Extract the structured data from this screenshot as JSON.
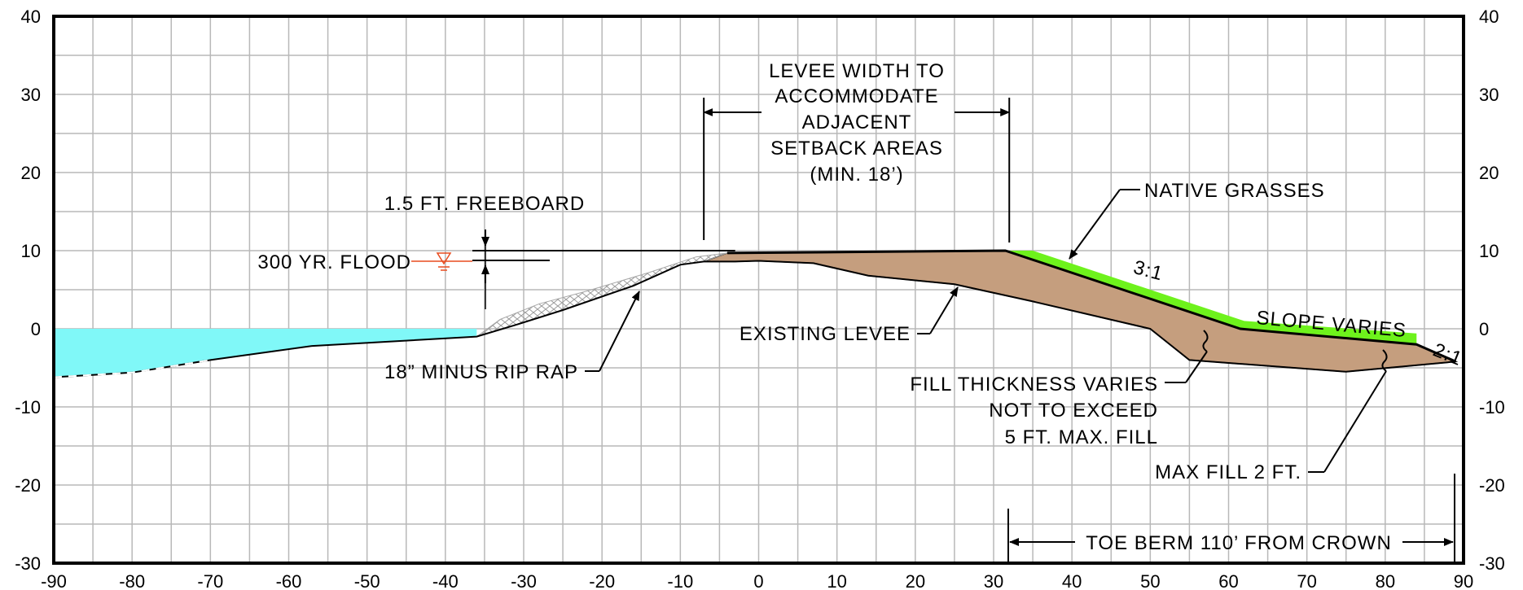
{
  "chart_data": {
    "type": "cross-section",
    "x_range": [
      -90,
      90
    ],
    "y_range": [
      -30,
      40
    ],
    "grid": true,
    "x_ticks": [
      -90,
      -80,
      -70,
      -60,
      -50,
      -40,
      -30,
      -20,
      -10,
      0,
      10,
      20,
      30,
      40,
      50,
      60,
      70,
      80,
      90
    ],
    "y_ticks": [
      40,
      30,
      20,
      10,
      0,
      -10,
      -20,
      -30
    ],
    "water_surface_elev": 0,
    "flood_elev": 8.5,
    "crown_elev": 10,
    "existing_ground": [
      [
        -90,
        -6.2
      ],
      [
        -80,
        -5.6
      ],
      [
        -70,
        -4
      ],
      [
        -57,
        -2.2
      ],
      [
        -36,
        -1
      ],
      [
        -31,
        0.5
      ],
      [
        -25,
        2.4
      ],
      [
        -16,
        5.5
      ],
      [
        -10,
        8.2
      ],
      [
        -7,
        8.6
      ],
      [
        -3,
        8.6
      ],
      [
        0,
        8.7
      ],
      [
        7,
        8.4
      ],
      [
        14,
        6.8
      ],
      [
        25,
        5.7
      ],
      [
        35,
        3.5
      ],
      [
        50,
        0
      ],
      [
        55,
        -4
      ],
      [
        75,
        -5.5
      ],
      [
        89,
        -4.2
      ]
    ],
    "new_levee_top": [
      [
        -4,
        9.7
      ],
      [
        31.5,
        10
      ],
      [
        61.5,
        0
      ],
      [
        84,
        -2
      ],
      [
        89,
        -4.2
      ]
    ],
    "colors": {
      "water": "#80f8f8",
      "fill": "#c59e7e",
      "grass": "#6ef21c",
      "flood": "#e84b1e"
    }
  },
  "annotations": {
    "levee_width_1": "LEVEE WIDTH TO",
    "levee_width_2": "ACCOMMODATE",
    "levee_width_3": "ADJACENT",
    "levee_width_4": "SETBACK AREAS",
    "levee_width_5": "(MIN. 18’)",
    "freeboard": "1.5 FT. FREEBOARD",
    "flood": "300 YR. FLOOD",
    "native_grasses": "NATIVE GRASSES",
    "slope_3_1": "3:1",
    "slope_varies": "SLOPE VARIES",
    "slope_2_1": "2:1",
    "existing_levee": "EXISTING LEVEE",
    "rip_rap": "18” MINUS RIP RAP",
    "fill_1": "FILL THICKNESS VARIES",
    "fill_2": "NOT TO EXCEED",
    "fill_3": "5 FT. MAX. FILL",
    "max_fill": "MAX FILL 2 FT.",
    "toe_berm": "TOE BERM 110’ FROM CROWN"
  }
}
